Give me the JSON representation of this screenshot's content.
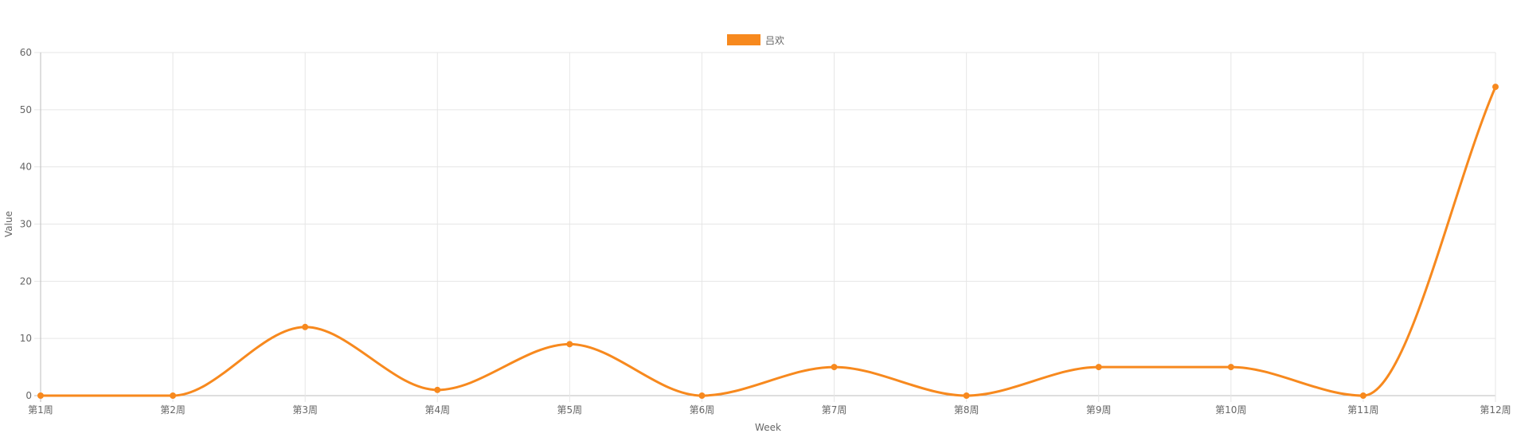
{
  "chart_data": {
    "type": "line",
    "title": "",
    "xlabel": "Week",
    "ylabel": "Value",
    "categories": [
      "第1周",
      "第2周",
      "第3周",
      "第4周",
      "第5周",
      "第6周",
      "第7周",
      "第8周",
      "第9周",
      "第10周",
      "第11周",
      "第12周"
    ],
    "series": [
      {
        "name": "吕欢",
        "values": [
          0,
          0,
          12,
          1,
          9,
          0,
          5,
          0,
          5,
          5,
          0,
          54
        ]
      }
    ],
    "ylim": [
      0,
      60
    ],
    "yticks": [
      0,
      10,
      20,
      30,
      40,
      50,
      60
    ],
    "grid": true,
    "legend": "top-center",
    "colors": {
      "series": "#f7891e",
      "grid": "#e6e6e6",
      "axis": "#bdbdbd",
      "text": "#666666"
    }
  }
}
